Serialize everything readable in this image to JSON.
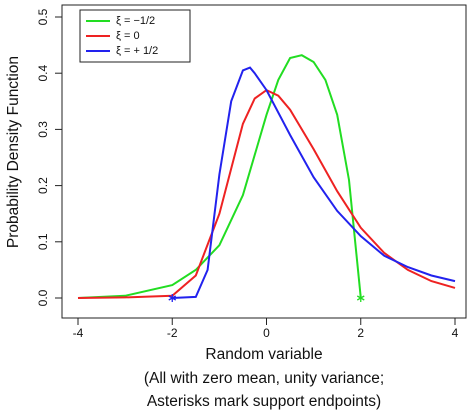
{
  "chart_data": {
    "type": "line",
    "xlabel": "Random variable",
    "xlabel_notes": [
      "(All with zero mean, unity variance;",
      "Asterisks mark support endpoints)"
    ],
    "ylabel": "Probability Density Function",
    "xlim": [
      -4,
      4
    ],
    "ylim": [
      0,
      0.5
    ],
    "xticks": [
      -4,
      -2,
      0,
      2,
      4
    ],
    "yticks": [
      {
        "value": 0,
        "label": "0.0"
      },
      0.1,
      0.2,
      0.3,
      0.4,
      0.5
    ],
    "legend": "upper left",
    "series": [
      {
        "name": "ξ = −1/2",
        "color": "#22dd22",
        "marker_at": "last",
        "x": [
          -4,
          -3,
          -2,
          -1.5,
          -1,
          -0.5,
          0,
          0.25,
          0.5,
          0.75,
          1,
          1.25,
          1.5,
          1.75,
          2
        ],
        "values": [
          0,
          0.004,
          0.023,
          0.05,
          0.094,
          0.183,
          0.326,
          0.388,
          0.427,
          0.432,
          0.42,
          0.388,
          0.326,
          0.21,
          0
        ]
      },
      {
        "name": "ξ = 0",
        "color": "#ee2222",
        "x": [
          -4,
          -3,
          -2,
          -1.5,
          -1,
          -0.5,
          -0.25,
          0,
          0.25,
          0.5,
          1,
          1.5,
          2,
          2.5,
          3,
          3.5,
          4
        ],
        "values": [
          0,
          0.001,
          0.004,
          0.04,
          0.15,
          0.31,
          0.355,
          0.37,
          0.36,
          0.335,
          0.265,
          0.19,
          0.125,
          0.08,
          0.05,
          0.03,
          0.018
        ]
      },
      {
        "name": "ξ = + 1/2",
        "color": "#2222ee",
        "marker_at": "first",
        "x": [
          -2,
          -1.5,
          -1.25,
          -1,
          -0.75,
          -0.5,
          -0.35,
          -0.25,
          0,
          0.5,
          1,
          1.5,
          2,
          2.5,
          3,
          3.5,
          4
        ],
        "values": [
          0,
          0.002,
          0.05,
          0.22,
          0.35,
          0.405,
          0.41,
          0.4,
          0.37,
          0.29,
          0.215,
          0.155,
          0.11,
          0.075,
          0.055,
          0.04,
          0.03
        ]
      }
    ]
  }
}
